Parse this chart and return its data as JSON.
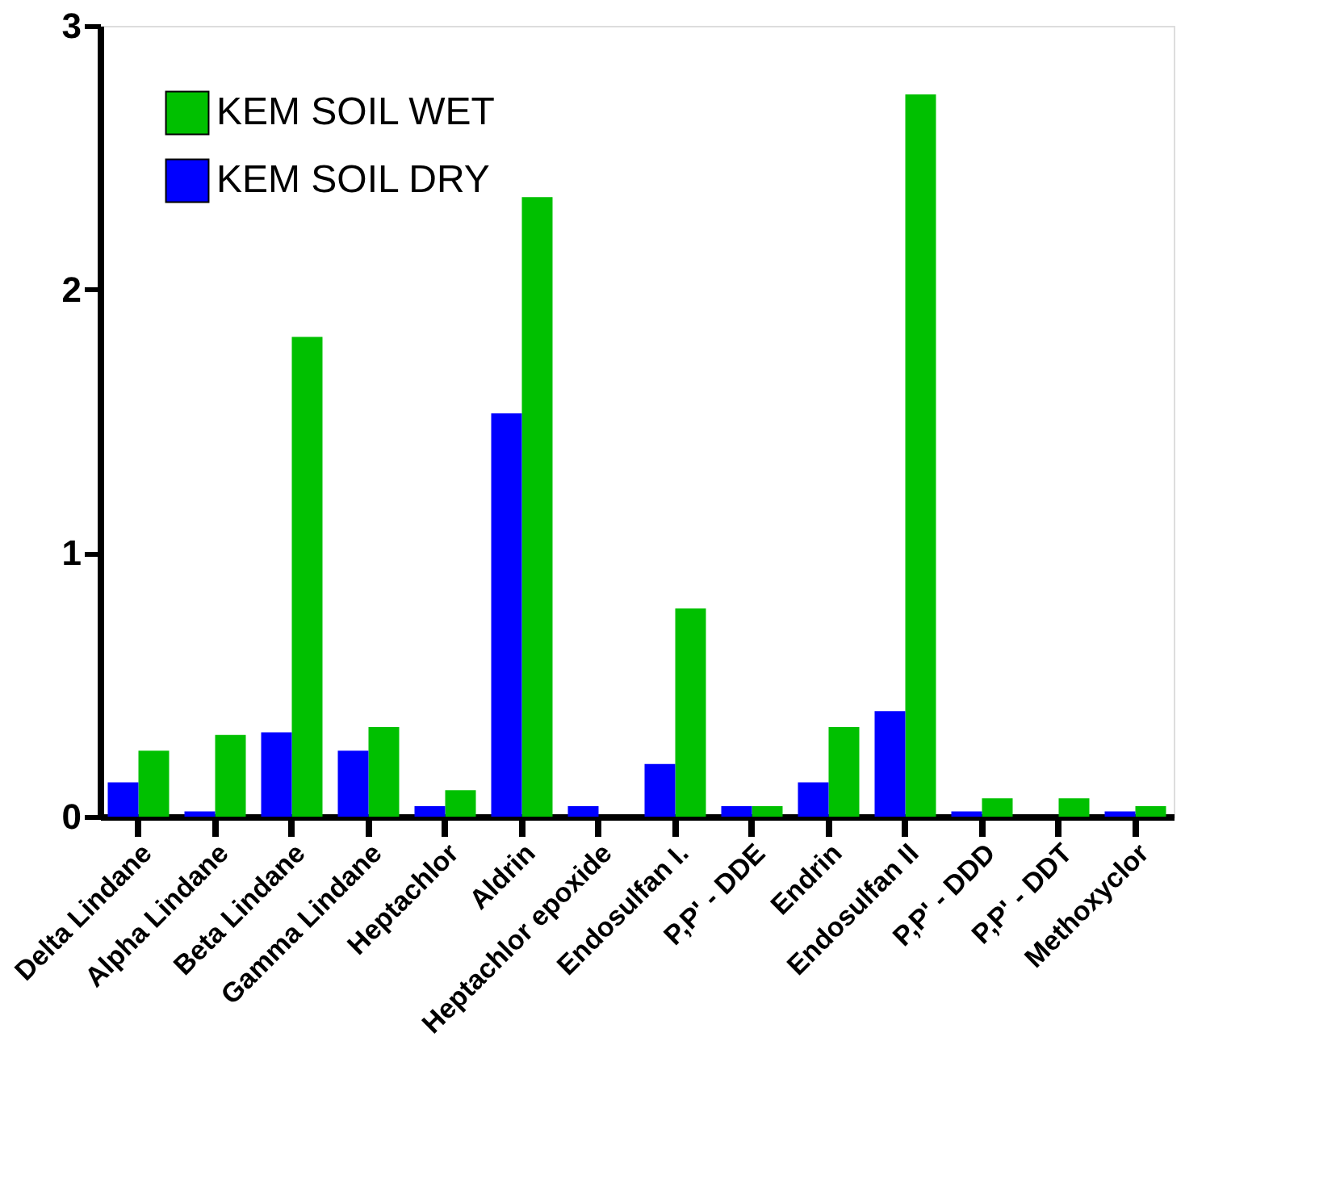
{
  "chart_data": {
    "type": "bar",
    "categories": [
      "Delta Lindane",
      "Alpha Lindane",
      "Beta Lindane",
      "Gamma Lindane",
      "Heptachlor",
      "Aldrin",
      "Heptachlor epoxide",
      "Endosulfan I.",
      "P,P' - DDE",
      "Endrin",
      "Endosulfan II",
      "P,P' - DDD",
      "P,P' - DDT",
      "Methoxyclor"
    ],
    "series": [
      {
        "name": "KEM SOIL WET",
        "color": "#00c000",
        "values": [
          0.25,
          0.31,
          1.82,
          0.34,
          0.1,
          2.35,
          0,
          0.79,
          0.04,
          0.34,
          2.74,
          0.07,
          0.07,
          0.04
        ]
      },
      {
        "name": "KEM SOIL DRY",
        "color": "#0000ff",
        "values": [
          0.13,
          0.02,
          0.32,
          0.25,
          0.04,
          1.53,
          0.04,
          0.2,
          0.04,
          0.13,
          0.4,
          0.02,
          0,
          0.02
        ]
      }
    ],
    "ylim": [
      0,
      3
    ],
    "yticks": [
      0,
      1,
      2,
      3
    ],
    "grid": false,
    "legend": "top left"
  }
}
